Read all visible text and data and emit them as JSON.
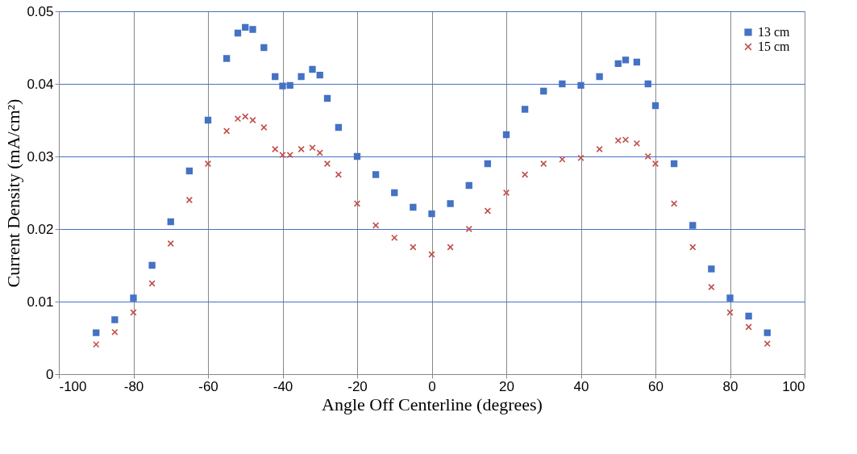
{
  "chart_data": {
    "type": "scatter",
    "xlabel": "Angle Off Centerline (degrees)",
    "ylabel": "Current Density (mA/cm²)",
    "xlim": [
      -100,
      100
    ],
    "xticks": [
      -100,
      -80,
      -60,
      -40,
      -20,
      0,
      20,
      40,
      60,
      80,
      100
    ],
    "ylim": [
      0,
      0.05
    ],
    "yticks": [
      0,
      0.01,
      0.02,
      0.03,
      0.04,
      0.05
    ],
    "grid": true,
    "legend": "top right",
    "x": [
      -90,
      -85,
      -80,
      -75,
      -70,
      -65,
      -60,
      -55,
      -52,
      -50,
      -48,
      -45,
      -42,
      -40,
      -38,
      -35,
      -32,
      -30,
      -28,
      -25,
      -20,
      -15,
      -10,
      -5,
      0,
      5,
      10,
      15,
      20,
      25,
      30,
      35,
      40,
      45,
      50,
      52,
      55,
      58,
      60,
      65,
      70,
      75,
      80,
      85,
      90
    ],
    "series": [
      {
        "name": "13 cm",
        "color": "#4472c4",
        "marker": "square",
        "values": [
          0.0057,
          0.0075,
          0.0105,
          0.015,
          0.021,
          0.028,
          0.035,
          0.0435,
          0.047,
          0.0478,
          0.0475,
          0.045,
          0.041,
          0.0397,
          0.0398,
          0.041,
          0.042,
          0.0412,
          0.038,
          0.034,
          0.03,
          0.0275,
          0.025,
          0.023,
          0.0221,
          0.0235,
          0.026,
          0.029,
          0.033,
          0.0365,
          0.039,
          0.04,
          0.0398,
          0.041,
          0.0428,
          0.0433,
          0.043,
          0.04,
          0.037,
          0.029,
          0.0205,
          0.0145,
          0.0105,
          0.008,
          0.0057
        ]
      },
      {
        "name": "15 cm",
        "color": "#c0504d",
        "marker": "cross",
        "values": [
          0.0041,
          0.0058,
          0.0085,
          0.0125,
          0.018,
          0.024,
          0.029,
          0.0335,
          0.0352,
          0.0355,
          0.035,
          0.034,
          0.031,
          0.0302,
          0.0302,
          0.031,
          0.0312,
          0.0305,
          0.029,
          0.0275,
          0.0235,
          0.0205,
          0.0188,
          0.0175,
          0.0165,
          0.0175,
          0.02,
          0.0225,
          0.025,
          0.0275,
          0.029,
          0.0296,
          0.0298,
          0.031,
          0.0322,
          0.0323,
          0.0318,
          0.03,
          0.029,
          0.0235,
          0.0175,
          0.012,
          0.0085,
          0.0065,
          0.0042
        ]
      }
    ]
  }
}
